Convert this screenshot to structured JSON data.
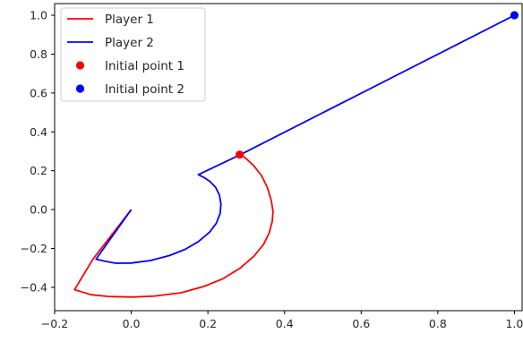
{
  "chart_data": {
    "type": "line",
    "title": "",
    "xlabel": "",
    "ylabel": "",
    "xlim": [
      -0.2,
      1.02
    ],
    "ylim": [
      -0.52,
      1.06
    ],
    "grid": false,
    "legend_placement": "top-left",
    "x_ticks": [
      -0.2,
      0.0,
      0.2,
      0.4,
      0.6,
      0.8,
      1.0
    ],
    "x_tick_labels": [
      "−0.2",
      "0.0",
      "0.2",
      "0.4",
      "0.6",
      "0.8",
      "1.0"
    ],
    "y_ticks": [
      -0.4,
      -0.2,
      0.0,
      0.2,
      0.4,
      0.6,
      0.8,
      1.0
    ],
    "y_tick_labels": [
      "−0.4",
      "−0.2",
      "0.0",
      "0.2",
      "0.4",
      "0.6",
      "0.8",
      "1.0"
    ],
    "series": [
      {
        "name": "Player 1",
        "kind": "line",
        "color": "#ff0000",
        "points": [
          [
            0.285,
            0.283
          ],
          [
            0.3,
            0.262
          ],
          [
            0.32,
            0.225
          ],
          [
            0.34,
            0.175
          ],
          [
            0.355,
            0.115
          ],
          [
            0.365,
            0.05
          ],
          [
            0.37,
            -0.01
          ],
          [
            0.368,
            -0.06
          ],
          [
            0.36,
            -0.12
          ],
          [
            0.345,
            -0.18
          ],
          [
            0.32,
            -0.24
          ],
          [
            0.285,
            -0.3
          ],
          [
            0.24,
            -0.355
          ],
          [
            0.19,
            -0.395
          ],
          [
            0.13,
            -0.428
          ],
          [
            0.06,
            -0.445
          ],
          [
            0.0,
            -0.45
          ],
          [
            -0.06,
            -0.447
          ],
          [
            -0.105,
            -0.438
          ],
          [
            -0.148,
            -0.412
          ],
          [
            -0.1,
            -0.255
          ],
          [
            0.0,
            -0.0
          ]
        ]
      },
      {
        "name": "Player 2",
        "kind": "line",
        "color": "#0000ff",
        "points": [
          [
            1.0,
            1.0
          ],
          [
            0.285,
            0.283
          ],
          [
            0.175,
            0.18
          ],
          [
            0.19,
            0.165
          ],
          [
            0.205,
            0.145
          ],
          [
            0.22,
            0.115
          ],
          [
            0.23,
            0.075
          ],
          [
            0.234,
            0.03
          ],
          [
            0.232,
            -0.02
          ],
          [
            0.222,
            -0.07
          ],
          [
            0.205,
            -0.115
          ],
          [
            0.175,
            -0.165
          ],
          [
            0.14,
            -0.205
          ],
          [
            0.1,
            -0.236
          ],
          [
            0.05,
            -0.262
          ],
          [
            0.0,
            -0.275
          ],
          [
            -0.04,
            -0.276
          ],
          [
            -0.07,
            -0.265
          ],
          [
            -0.092,
            -0.255
          ],
          [
            0.0,
            -0.0
          ]
        ]
      },
      {
        "name": "Initial point 1",
        "kind": "marker",
        "color": "#ff0000",
        "points": [
          [
            0.283,
            0.283
          ]
        ]
      },
      {
        "name": "Initial point 2",
        "kind": "marker",
        "color": "#0000ff",
        "points": [
          [
            1.0,
            1.0
          ]
        ]
      }
    ]
  }
}
